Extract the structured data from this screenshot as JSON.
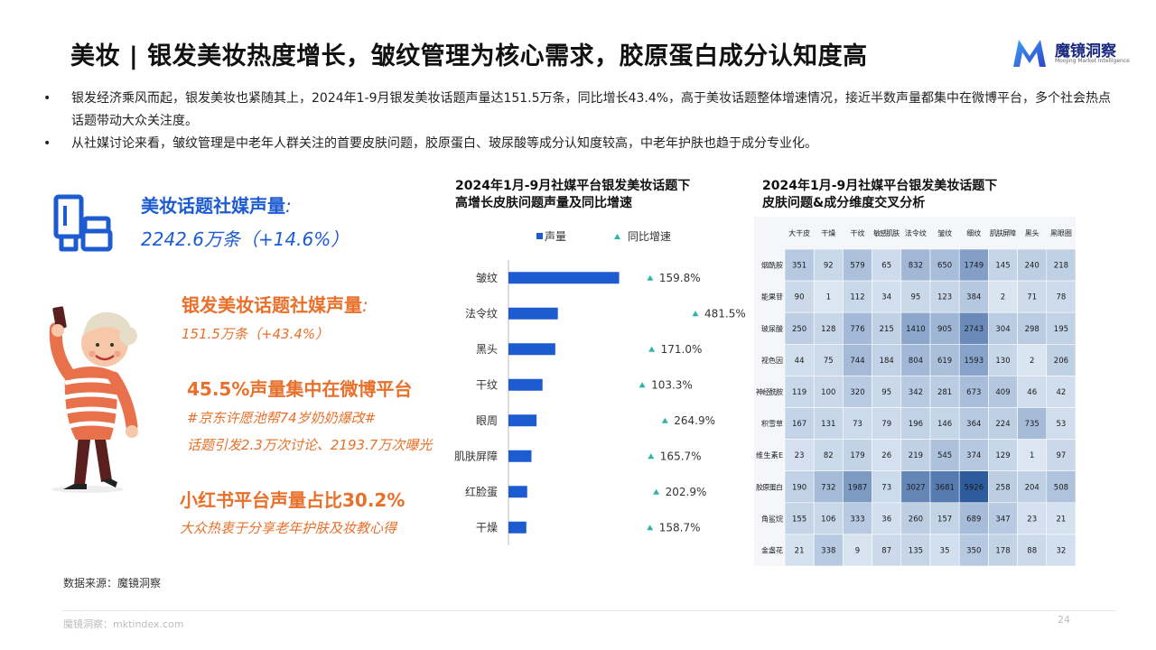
{
  "title": "美妆 | 银发美妆热度增长，皱纹管理为核心需求，胶原蛋白成分认知度高",
  "logo": {
    "name": "魔镜洞察",
    "sub": "Moojing Market Intelligence"
  },
  "bullets": [
    "银发经济乘风而起，银发美妆也紧随其上，2024年1-9月银发美妆话题声量达151.5万条，同比增长43.4%，高于美妆话题整体增速情况，接近半数声量都集中在微博平台，多个社会热点话题带动大众关注度。",
    "从社媒讨论来看，皱纹管理是中老年人群关注的首要皮肤问题，胶原蛋白、玻尿酸等成分认知度较高，中老年护肤也趋于成分专业化。"
  ],
  "stats": {
    "s1_title": "美妆话题社媒声量",
    "s1_colon": ":",
    "s1_value": "2242.6万条（+14.6%）",
    "s2_title": "银发美妆话题社媒声量",
    "s2_colon": ":",
    "s2_value": "151.5万条（+43.4%）",
    "s3_title": "45.5%声量集中在微博平台",
    "s3_sub1": "#京东许愿池帮74岁奶奶爆改#",
    "s3_sub2": "话题引发2.3万次讨论、2193.7万次曝光",
    "s4_title": "小红书平台声量占比30.2%",
    "s4_sub": "大众热衷于分享老年护肤及妆教心得"
  },
  "colors": {
    "blue": "#1d5bd1",
    "orange": "#e8702a",
    "teal": "#2bb5a8",
    "heat_low": "#dce7f3",
    "heat_high": "#2e5b9c"
  },
  "chart_data": [
    {
      "type": "bar",
      "title_line1": "2024年1月-9月社媒平台银发美妆话题下",
      "title_line2": "高增长皮肤问题声量及同比增速",
      "legend": [
        "声量",
        "同比增速"
      ],
      "categories": [
        "皱纹",
        "法令纹",
        "黑头",
        "干纹",
        "眼周",
        "肌肤屏障",
        "红脸蛋",
        "干燥"
      ],
      "values": [
        130,
        58,
        55,
        40,
        33,
        27,
        22,
        21
      ],
      "growth": [
        "159.8%",
        "481.5%",
        "171.0%",
        "103.3%",
        "264.9%",
        "165.7%",
        "202.9%",
        "158.7%"
      ],
      "growth_values": [
        159.8,
        481.5,
        171.0,
        103.3,
        264.9,
        165.7,
        202.9,
        158.7
      ],
      "xlim": [
        0,
        140
      ]
    },
    {
      "type": "heatmap",
      "title_line1": "2024年1月-9月社媒平台银发美妆话题下",
      "title_line2": "皮肤问题&成分维度交叉分析",
      "columns": [
        "大干皮",
        "干燥",
        "干纹",
        "敏感肌肤",
        "法令纹",
        "皱纹",
        "细纹",
        "肌肤屏障",
        "黑头",
        "黑眼圈"
      ],
      "rows": [
        "烟酰胺",
        "能果苷",
        "玻尿酸",
        "视色因",
        "神经酰胺",
        "积雪草",
        "维生素E",
        "胶原蛋白",
        "角鲨烷",
        "金盏花"
      ],
      "values": [
        [
          351,
          92,
          579,
          65,
          832,
          650,
          1749,
          145,
          240,
          218
        ],
        [
          90,
          1,
          112,
          34,
          95,
          123,
          384,
          2,
          71,
          78
        ],
        [
          250,
          128,
          776,
          215,
          1410,
          905,
          2743,
          304,
          298,
          195
        ],
        [
          44,
          75,
          744,
          184,
          804,
          619,
          1593,
          130,
          2,
          206
        ],
        [
          119,
          100,
          320,
          95,
          342,
          281,
          673,
          409,
          46,
          42
        ],
        [
          167,
          131,
          73,
          79,
          196,
          146,
          364,
          224,
          735,
          53
        ],
        [
          23,
          82,
          179,
          26,
          219,
          545,
          374,
          129,
          1,
          97
        ],
        [
          190,
          732,
          1987,
          73,
          3027,
          3681,
          5926,
          258,
          204,
          508
        ],
        [
          155,
          106,
          333,
          36,
          260,
          157,
          689,
          347,
          23,
          21
        ],
        [
          21,
          338,
          9,
          87,
          135,
          35,
          350,
          178,
          88,
          32
        ]
      ]
    }
  ],
  "source": "数据来源：魔镜洞察",
  "footer": "魔镜洞察：mktindex.com",
  "page_number": "24"
}
